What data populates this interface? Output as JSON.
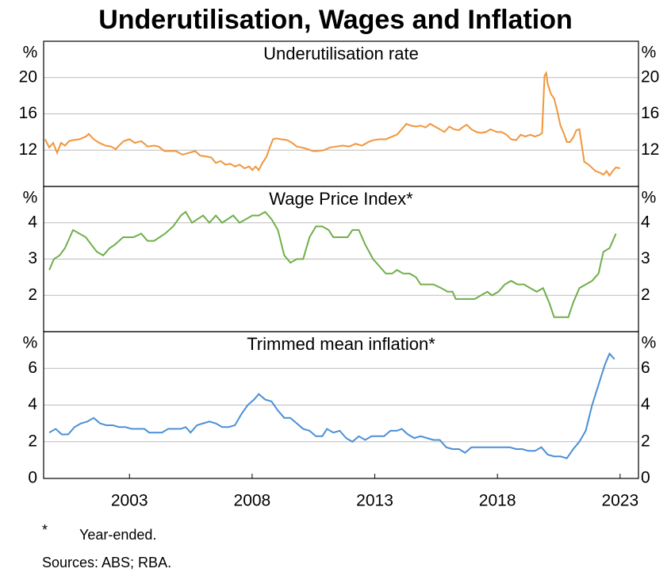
{
  "title": "Underutilisation, Wages and Inflation",
  "chart_data": [
    {
      "type": "line",
      "title": "Underutilisation rate",
      "ylabel": "%",
      "xlim": [
        2000,
        2024.25
      ],
      "ylim": [
        8,
        24
      ],
      "yticks": [
        12,
        16,
        20
      ],
      "grid": true,
      "x": [
        2000.06,
        2000.23,
        2000.39,
        2000.55,
        2000.71,
        2000.87,
        2001.04,
        2001.2,
        2001.46,
        2001.72,
        2001.84,
        2002.04,
        2002.27,
        2002.52,
        2002.75,
        2002.94,
        2003.07,
        2003.27,
        2003.5,
        2003.72,
        2003.98,
        2004.24,
        2004.5,
        2004.69,
        2004.92,
        2005.18,
        2005.4,
        2005.66,
        2005.92,
        2006.18,
        2006.38,
        2006.63,
        2006.83,
        2007.02,
        2007.22,
        2007.41,
        2007.61,
        2007.8,
        2007.99,
        2008.19,
        2008.38,
        2008.51,
        2008.64,
        2008.77,
        2008.9,
        2009.09,
        2009.22,
        2009.35,
        2009.48,
        2009.68,
        2009.94,
        2010.13,
        2010.32,
        2010.52,
        2010.78,
        2010.97,
        2011.17,
        2011.42,
        2011.68,
        2011.94,
        2012.2,
        2012.46,
        2012.72,
        2012.98,
        2013.24,
        2013.43,
        2013.69,
        2013.95,
        2014.21,
        2014.4,
        2014.6,
        2014.79,
        2014.98,
        2015.18,
        2015.37,
        2015.57,
        2015.76,
        2015.95,
        2016.15,
        2016.34,
        2016.54,
        2016.73,
        2016.93,
        2017.12,
        2017.25,
        2017.44,
        2017.64,
        2017.83,
        2018.03,
        2018.22,
        2018.48,
        2018.67,
        2018.87,
        2019.06,
        2019.26,
        2019.45,
        2019.64,
        2019.84,
        2020.03,
        2020.23,
        2020.32,
        2020.42,
        2020.49,
        2020.55,
        2020.68,
        2020.81,
        2020.94,
        2021.07,
        2021.2,
        2021.33,
        2021.46,
        2021.59,
        2021.72,
        2021.84,
        2021.97,
        2022.04,
        2022.17,
        2022.3,
        2022.49,
        2022.69,
        2022.82,
        2022.95,
        2023.07,
        2023.2,
        2023.33,
        2023.5
      ],
      "series": [
        {
          "color": "#f0963c",
          "values": [
            13.2,
            12.3,
            12.8,
            11.7,
            12.8,
            12.5,
            13.0,
            13.1,
            13.2,
            13.5,
            13.8,
            13.2,
            12.8,
            12.5,
            12.4,
            12.1,
            12.5,
            13.0,
            13.2,
            12.8,
            13.0,
            12.4,
            12.5,
            12.4,
            11.9,
            11.9,
            11.9,
            11.5,
            11.7,
            11.9,
            11.4,
            11.3,
            11.2,
            10.6,
            10.8,
            10.4,
            10.5,
            10.2,
            10.4,
            10.0,
            10.2,
            9.8,
            10.2,
            9.8,
            10.5,
            11.3,
            12.3,
            13.2,
            13.3,
            13.2,
            13.1,
            12.8,
            12.4,
            12.3,
            12.1,
            11.9,
            11.9,
            12.0,
            12.3,
            12.4,
            12.5,
            12.4,
            12.7,
            12.5,
            12.9,
            13.1,
            13.2,
            13.2,
            13.5,
            13.7,
            14.3,
            14.9,
            14.7,
            14.6,
            14.7,
            14.5,
            14.9,
            14.6,
            14.3,
            14.0,
            14.6,
            14.3,
            14.2,
            14.6,
            14.8,
            14.3,
            14.0,
            13.9,
            14.0,
            14.3,
            14.0,
            14.0,
            13.7,
            13.2,
            13.1,
            13.7,
            13.5,
            13.7,
            13.5,
            13.7,
            13.9,
            20.2,
            20.5,
            19.3,
            18.2,
            17.7,
            16.3,
            14.7,
            13.9,
            12.9,
            12.9,
            13.4,
            14.2,
            14.3,
            12.0,
            10.7,
            10.5,
            10.2,
            9.7,
            9.5,
            9.3,
            9.7,
            9.2,
            9.7,
            10.1,
            10.0
          ]
        }
      ]
    },
    {
      "type": "line",
      "title": "Wage Price Index*",
      "ylabel": "%",
      "xlim": [
        2000,
        2024.25
      ],
      "ylim": [
        1,
        5
      ],
      "yticks": [
        2,
        3,
        4
      ],
      "grid": true,
      "x": [
        2000.23,
        2000.42,
        2000.65,
        2000.87,
        2001.2,
        2001.46,
        2001.72,
        2001.94,
        2002.17,
        2002.43,
        2002.69,
        2002.91,
        2003.24,
        2003.66,
        2003.98,
        2004.24,
        2004.5,
        2004.95,
        2005.28,
        2005.6,
        2005.79,
        2006.05,
        2006.5,
        2006.76,
        2007.02,
        2007.28,
        2007.73,
        2007.99,
        2008.51,
        2008.77,
        2009.03,
        2009.29,
        2009.55,
        2009.81,
        2010.06,
        2010.32,
        2010.58,
        2010.84,
        2011.1,
        2011.36,
        2011.62,
        2011.81,
        2012.14,
        2012.39,
        2012.59,
        2012.85,
        2013.11,
        2013.43,
        2013.69,
        2013.95,
        2014.21,
        2014.4,
        2014.66,
        2014.92,
        2015.18,
        2015.37,
        2015.76,
        2015.89,
        2016.21,
        2016.47,
        2016.67,
        2016.8,
        2017.18,
        2017.57,
        2017.83,
        2018.09,
        2018.28,
        2018.54,
        2018.8,
        2019.06,
        2019.32,
        2019.58,
        2019.84,
        2020.1,
        2020.36,
        2020.61,
        2020.81,
        2021.07,
        2021.39,
        2021.59,
        2021.84,
        2022.1,
        2022.36,
        2022.62,
        2022.82,
        2023.07,
        2023.33
      ],
      "series": [
        {
          "color": "#6faf4a",
          "values": [
            2.7,
            3.0,
            3.1,
            3.3,
            3.8,
            3.7,
            3.6,
            3.4,
            3.2,
            3.1,
            3.3,
            3.4,
            3.6,
            3.6,
            3.7,
            3.5,
            3.5,
            3.7,
            3.9,
            4.2,
            4.3,
            4.0,
            4.2,
            4.0,
            4.2,
            4.0,
            4.2,
            4.0,
            4.2,
            4.2,
            4.3,
            4.1,
            3.8,
            3.1,
            2.9,
            3.0,
            3.0,
            3.6,
            3.9,
            3.9,
            3.8,
            3.6,
            3.6,
            3.6,
            3.8,
            3.8,
            3.4,
            3.0,
            2.8,
            2.6,
            2.6,
            2.7,
            2.6,
            2.6,
            2.5,
            2.3,
            2.3,
            2.3,
            2.2,
            2.1,
            2.1,
            1.9,
            1.9,
            1.9,
            2.0,
            2.1,
            2.0,
            2.1,
            2.3,
            2.4,
            2.3,
            2.3,
            2.2,
            2.1,
            2.2,
            1.8,
            1.4,
            1.4,
            1.4,
            1.8,
            2.2,
            2.3,
            2.4,
            2.6,
            3.2,
            3.3,
            3.7
          ]
        }
      ]
    },
    {
      "type": "line",
      "title": "Trimmed mean inflation*",
      "ylabel": "%",
      "xlim": [
        2000,
        2024.25
      ],
      "ylim": [
        0,
        8
      ],
      "yticks": [
        0,
        2,
        4,
        6
      ],
      "grid": true,
      "xticks": [
        {
          "value": 2003.5,
          "label": "2003"
        },
        {
          "value": 2008.5,
          "label": "2008"
        },
        {
          "value": 2013.5,
          "label": "2013"
        },
        {
          "value": 2018.5,
          "label": "2018"
        },
        {
          "value": 2023.5,
          "label": "2023"
        }
      ],
      "x": [
        2000.23,
        2000.49,
        2000.74,
        2001.0,
        2001.26,
        2001.52,
        2001.78,
        2002.04,
        2002.3,
        2002.56,
        2002.82,
        2003.07,
        2003.33,
        2003.59,
        2003.85,
        2004.11,
        2004.3,
        2004.56,
        2004.82,
        2005.08,
        2005.34,
        2005.6,
        2005.79,
        2005.99,
        2006.25,
        2006.5,
        2006.76,
        2007.02,
        2007.28,
        2007.54,
        2007.8,
        2008.06,
        2008.32,
        2008.58,
        2008.77,
        2009.03,
        2009.29,
        2009.55,
        2009.81,
        2010.06,
        2010.32,
        2010.58,
        2010.84,
        2011.1,
        2011.36,
        2011.55,
        2011.81,
        2012.07,
        2012.33,
        2012.59,
        2012.85,
        2013.11,
        2013.37,
        2013.62,
        2013.88,
        2014.14,
        2014.4,
        2014.6,
        2014.85,
        2015.11,
        2015.37,
        2015.63,
        2015.89,
        2016.15,
        2016.41,
        2016.67,
        2016.93,
        2017.18,
        2017.44,
        2017.7,
        2017.96,
        2018.22,
        2018.48,
        2018.74,
        2019.0,
        2019.26,
        2019.51,
        2019.77,
        2020.03,
        2020.29,
        2020.55,
        2020.81,
        2021.07,
        2021.33,
        2021.59,
        2021.84,
        2022.1,
        2022.36,
        2022.62,
        2022.88,
        2023.07,
        2023.27
      ],
      "series": [
        {
          "color": "#4b8fd6",
          "values": [
            2.5,
            2.7,
            2.4,
            2.4,
            2.8,
            3.0,
            3.1,
            3.3,
            3.0,
            2.9,
            2.9,
            2.8,
            2.8,
            2.7,
            2.7,
            2.7,
            2.5,
            2.5,
            2.5,
            2.7,
            2.7,
            2.7,
            2.8,
            2.5,
            2.9,
            3.0,
            3.1,
            3.0,
            2.8,
            2.8,
            2.9,
            3.5,
            4.0,
            4.3,
            4.6,
            4.3,
            4.2,
            3.7,
            3.3,
            3.3,
            3.0,
            2.7,
            2.6,
            2.3,
            2.3,
            2.7,
            2.5,
            2.6,
            2.2,
            2.0,
            2.3,
            2.1,
            2.3,
            2.3,
            2.3,
            2.6,
            2.6,
            2.7,
            2.4,
            2.2,
            2.3,
            2.2,
            2.1,
            2.1,
            1.7,
            1.6,
            1.6,
            1.4,
            1.7,
            1.7,
            1.7,
            1.7,
            1.7,
            1.7,
            1.7,
            1.6,
            1.6,
            1.5,
            1.5,
            1.7,
            1.3,
            1.2,
            1.2,
            1.1,
            1.6,
            2.0,
            2.6,
            4.0,
            5.1,
            6.2,
            6.8,
            6.5
          ]
        }
      ]
    }
  ],
  "footnote": {
    "marker": "*",
    "text": "Year-ended."
  },
  "sources": "Sources: ABS; RBA."
}
